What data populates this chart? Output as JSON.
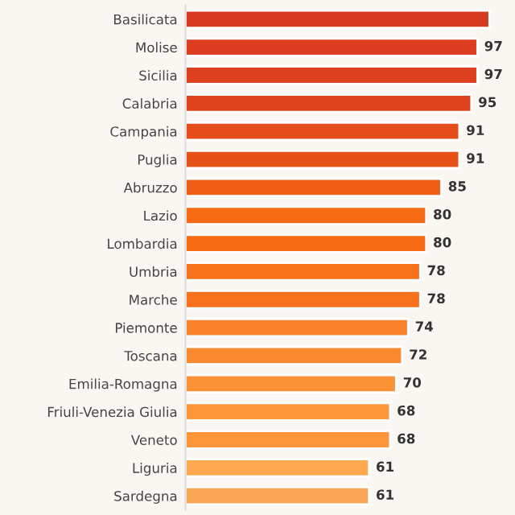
{
  "chart_data": {
    "type": "bar",
    "orientation": "horizontal",
    "categories": [
      "Basilicata",
      "Molise",
      "Sicilia",
      "Calabria",
      "Campania",
      "Puglia",
      "Abruzzo",
      "Lazio",
      "Lombardia",
      "Umbria",
      "Marche",
      "Piemonte",
      "Toscana",
      "Emilia-Romagna",
      "Friuli-Venezia Giulia",
      "Veneto",
      "Liguria",
      "Sardegna"
    ],
    "values": [
      101,
      97,
      97,
      95,
      91,
      91,
      85,
      80,
      80,
      78,
      78,
      74,
      72,
      70,
      68,
      68,
      61,
      61
    ],
    "value_labels": [
      null,
      "97",
      "97",
      "95",
      "91",
      "91",
      "85",
      "80",
      "80",
      "78",
      "78",
      "74",
      "72",
      "70",
      "68",
      "68",
      "61",
      "61"
    ],
    "colors": [
      "#d7391f",
      "#dc3e1f",
      "#dd401f",
      "#df431e",
      "#e44d19",
      "#e65218",
      "#f06014",
      "#f56a13",
      "#f56a13",
      "#f7721a",
      "#f7721a",
      "#f9822a",
      "#fa8a30",
      "#fb9236",
      "#fc9639",
      "#fc9639",
      "#fea94f",
      "#f7a455"
    ],
    "grid": false
  }
}
